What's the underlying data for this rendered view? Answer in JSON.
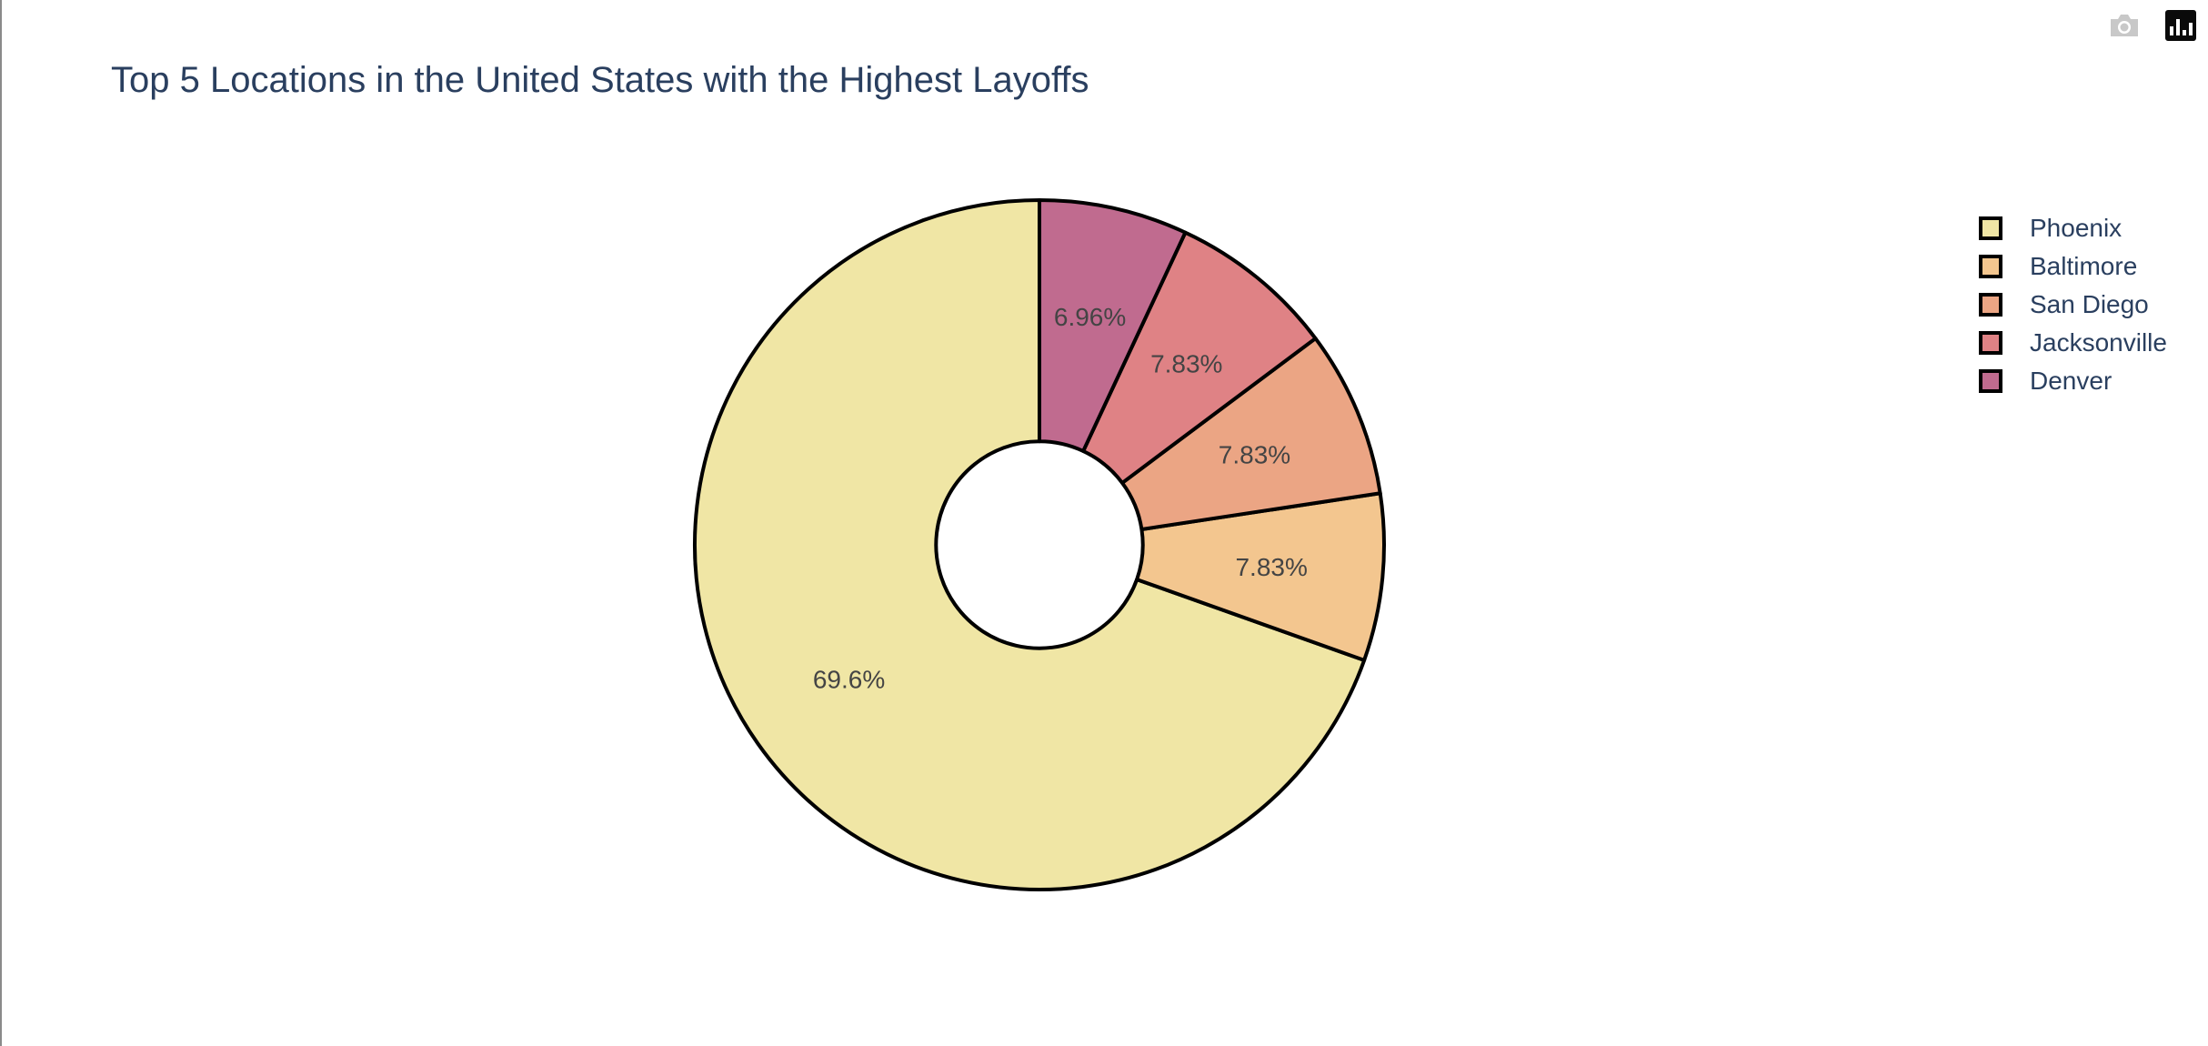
{
  "chart_data": {
    "type": "pie",
    "title": "Top 5 Locations in the United States with the Highest Layoffs",
    "hole": 0.3,
    "labels": [
      "Phoenix",
      "Baltimore",
      "San Diego",
      "Jacksonville",
      "Denver"
    ],
    "percent_labels": [
      "69.6%",
      "7.83%",
      "7.83%",
      "7.83%",
      "6.96%"
    ],
    "values": [
      69.6,
      7.83,
      7.83,
      7.83,
      6.96
    ],
    "colors": [
      "#f0e6a5",
      "#f3c68f",
      "#eba584",
      "#df8285",
      "#c06b8f"
    ],
    "legend_position": "top-right"
  },
  "toolbar": {
    "camera_icon": "camera-icon",
    "logo_icon": "plotly-logo-icon"
  }
}
